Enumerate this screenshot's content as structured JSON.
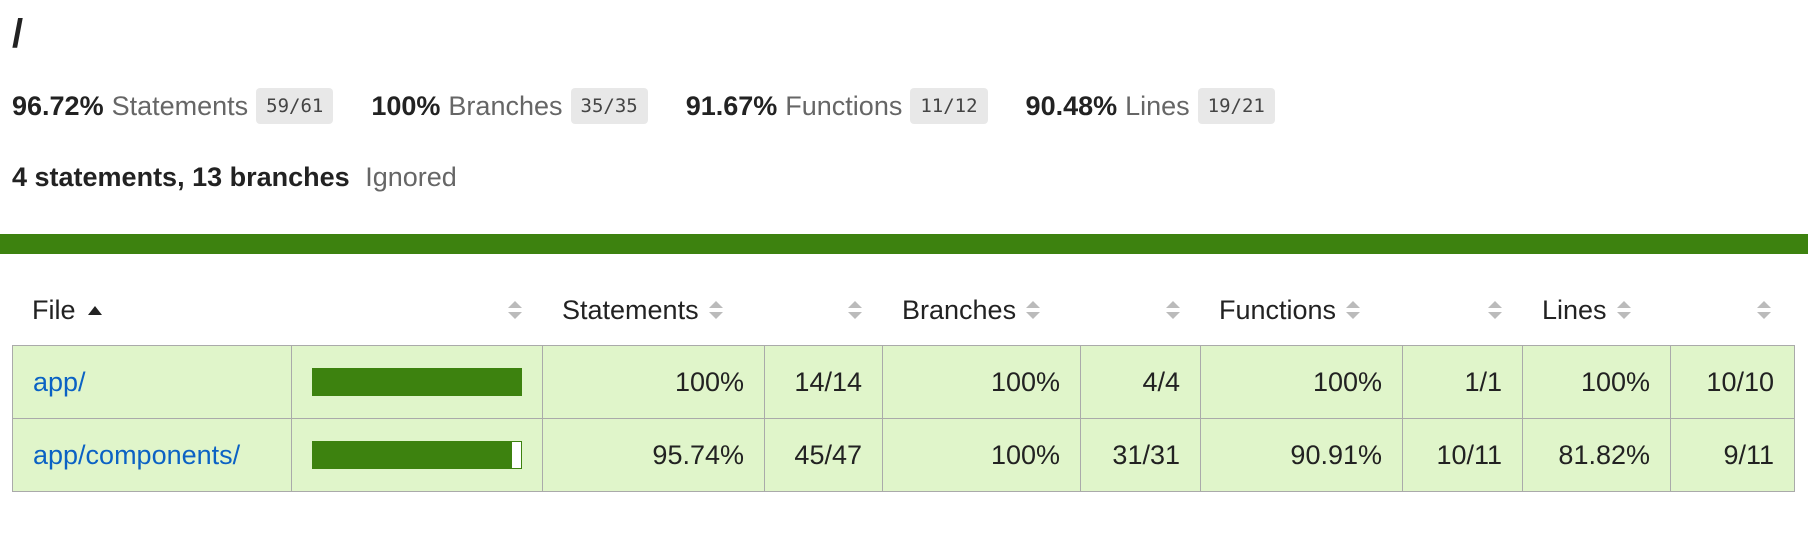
{
  "page": {
    "title": "/"
  },
  "summary": [
    {
      "pct": "96.72%",
      "label": "Statements",
      "fraction": "59/61"
    },
    {
      "pct": "100%",
      "label": "Branches",
      "fraction": "35/35"
    },
    {
      "pct": "91.67%",
      "label": "Functions",
      "fraction": "11/12"
    },
    {
      "pct": "90.48%",
      "label": "Lines",
      "fraction": "19/21"
    }
  ],
  "ignored": {
    "strong": "4 statements, 13 branches",
    "label": "Ignored"
  },
  "colors": {
    "high": "#3d820f",
    "high_bg": "#e0f5ca",
    "link": "#0b62c4"
  },
  "table": {
    "headers": {
      "file": "File",
      "statements": "Statements",
      "branches": "Branches",
      "functions": "Functions",
      "lines": "Lines"
    },
    "rows": [
      {
        "file": "app/",
        "coverage": 1.0,
        "statements_pct": "100%",
        "statements_frac": "14/14",
        "branches_pct": "100%",
        "branches_frac": "4/4",
        "functions_pct": "100%",
        "functions_frac": "1/1",
        "lines_pct": "100%",
        "lines_frac": "10/10"
      },
      {
        "file": "app/components/",
        "coverage": 0.9574,
        "statements_pct": "95.74%",
        "statements_frac": "45/47",
        "branches_pct": "100%",
        "branches_frac": "31/31",
        "functions_pct": "90.91%",
        "functions_frac": "10/11",
        "lines_pct": "81.82%",
        "lines_frac": "9/11"
      }
    ]
  }
}
